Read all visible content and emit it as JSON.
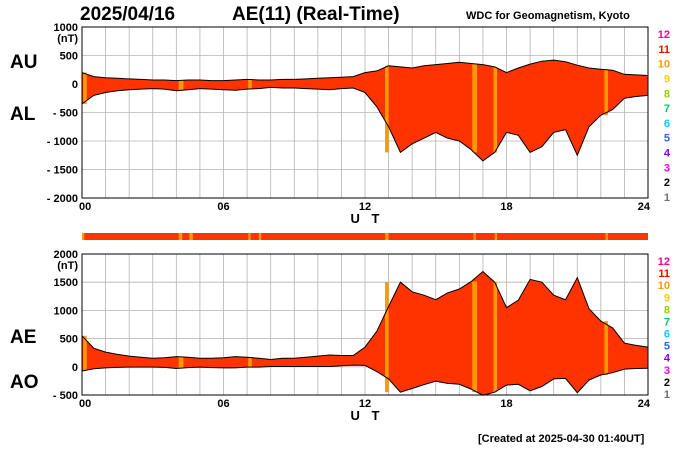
{
  "header": {
    "date": "2025/04/16",
    "title": "AE(11) (Real-Time)",
    "credit": "WDC for Geomagnetism, Kyoto",
    "created": "[Created at 2025-04-30 01:40UT]"
  },
  "colors": {
    "fill": "#ff3300",
    "highlight": "#ff9900",
    "bar_fill": "#ff3300",
    "station_scale": [
      "#b0b0b0",
      "#707070",
      "#000000",
      "#ff00ff",
      "#8800ff",
      "#3366ff",
      "#00ccff",
      "#00cc66",
      "#99cc00",
      "#ffcc00",
      "#ff9900",
      "#ff0000",
      "#ff0099"
    ]
  },
  "station_scale_labels": [
    "1",
    "2",
    "3",
    "4",
    "5",
    "6",
    "7",
    "8",
    "9",
    "10",
    "11",
    "12"
  ],
  "chart_data": [
    {
      "type": "area",
      "panel": "top",
      "left_labels": [
        "AU",
        "AL"
      ],
      "ylabel": "(nT)",
      "ylim": [
        -2000,
        1000
      ],
      "yticks": [
        1000,
        500,
        0,
        -500,
        -1000,
        -1500,
        -2000
      ],
      "ytick_labels": [
        "1000",
        "500",
        "0",
        "- 500",
        "- 1000",
        "- 1500",
        "- 2000"
      ],
      "xlim": [
        0,
        24
      ],
      "xticks": [
        0,
        6,
        12,
        18,
        24
      ],
      "xtick_labels": [
        "00",
        "06",
        "12",
        "18",
        "24"
      ],
      "xlabel": "U T",
      "x": [
        0,
        0.5,
        1,
        1.5,
        2,
        2.5,
        3,
        3.5,
        4,
        4.5,
        5,
        5.5,
        6,
        6.5,
        7,
        7.5,
        8,
        8.5,
        9,
        9.5,
        10,
        10.5,
        11,
        11.5,
        12,
        12.5,
        13,
        13.5,
        14,
        14.5,
        15,
        15.5,
        16,
        16.5,
        17,
        17.5,
        18,
        18.5,
        19,
        19.5,
        20,
        20.5,
        21,
        21.5,
        22,
        22.5,
        23,
        23.5,
        24
      ],
      "series": [
        {
          "values": [
            200,
            130,
            110,
            100,
            90,
            80,
            70,
            70,
            60,
            70,
            70,
            60,
            60,
            70,
            80,
            70,
            70,
            80,
            80,
            90,
            100,
            110,
            120,
            130,
            200,
            230,
            320,
            300,
            280,
            320,
            340,
            360,
            380,
            360,
            340,
            300,
            200,
            280,
            350,
            400,
            420,
            390,
            330,
            280,
            260,
            240,
            170,
            160,
            150
          ]
        },
        {
          "values": [
            -350,
            -200,
            -150,
            -120,
            -100,
            -90,
            -80,
            -90,
            -120,
            -100,
            -80,
            -90,
            -100,
            -110,
            -90,
            -80,
            -60,
            -70,
            -70,
            -80,
            -90,
            -100,
            -80,
            -70,
            -150,
            -400,
            -750,
            -1200,
            -1050,
            -950,
            -850,
            -950,
            -1000,
            -1150,
            -1350,
            -1200,
            -850,
            -900,
            -1200,
            -1100,
            -850,
            -800,
            -1250,
            -750,
            -550,
            -450,
            -250,
            -220,
            -200
          ]
        }
      ]
    },
    {
      "type": "area",
      "panel": "bottom",
      "left_labels": [
        "AE",
        "AO"
      ],
      "ylabel": "(nT)",
      "ylim": [
        -500,
        2000
      ],
      "yticks": [
        2000,
        1500,
        1000,
        500,
        0,
        -500
      ],
      "ytick_labels": [
        "2000",
        "1500",
        "1000",
        "500",
        "0",
        "- 500"
      ],
      "xlim": [
        0,
        24
      ],
      "xticks": [
        0,
        6,
        12,
        18,
        24
      ],
      "xtick_labels": [
        "00",
        "06",
        "12",
        "18",
        "24"
      ],
      "xlabel": "U T",
      "x": [
        0,
        0.5,
        1,
        1.5,
        2,
        2.5,
        3,
        3.5,
        4,
        4.5,
        5,
        5.5,
        6,
        6.5,
        7,
        7.5,
        8,
        8.5,
        9,
        9.5,
        10,
        10.5,
        11,
        11.5,
        12,
        12.5,
        13,
        13.5,
        14,
        14.5,
        15,
        15.5,
        16,
        16.5,
        17,
        17.5,
        18,
        18.5,
        19,
        19.5,
        20,
        20.5,
        21,
        21.5,
        22,
        22.5,
        23,
        23.5,
        24
      ],
      "series": [
        {
          "values": [
            550,
            330,
            260,
            220,
            190,
            170,
            150,
            160,
            180,
            170,
            150,
            150,
            160,
            180,
            170,
            150,
            130,
            150,
            150,
            170,
            190,
            210,
            200,
            200,
            350,
            630,
            1070,
            1500,
            1330,
            1270,
            1190,
            1310,
            1380,
            1510,
            1690,
            1500,
            1050,
            1180,
            1550,
            1500,
            1270,
            1190,
            1580,
            1030,
            810,
            690,
            420,
            380,
            350
          ]
        },
        {
          "values": [
            -75,
            -35,
            -20,
            -10,
            -5,
            -5,
            -5,
            -10,
            -30,
            -15,
            -5,
            -15,
            -20,
            -20,
            -5,
            -5,
            5,
            5,
            5,
            5,
            5,
            5,
            20,
            30,
            25,
            -85,
            -215,
            -450,
            -385,
            -315,
            -255,
            -295,
            -310,
            -395,
            -505,
            -450,
            -325,
            -310,
            -425,
            -350,
            -215,
            -205,
            -460,
            -235,
            -145,
            -105,
            -40,
            -30,
            -25
          ]
        }
      ]
    }
  ],
  "station_bar": {
    "highlight_segments": [
      [
        0.0,
        0.1
      ],
      [
        4.1,
        4.25
      ],
      [
        4.55,
        4.7
      ],
      [
        7.05,
        7.15
      ],
      [
        7.5,
        7.6
      ],
      [
        12.85,
        13.0
      ],
      [
        16.6,
        16.7
      ],
      [
        17.5,
        17.6
      ],
      [
        22.2,
        22.3
      ]
    ]
  },
  "top_highlight_spans": [
    [
      0.05,
      0.2
    ],
    [
      4.1,
      4.3
    ],
    [
      7.05,
      7.2
    ],
    [
      12.85,
      13.0
    ],
    [
      16.55,
      16.75
    ],
    [
      17.45,
      17.6
    ],
    [
      22.15,
      22.3
    ]
  ],
  "bottom_highlight_spans": [
    [
      0.05,
      0.2
    ],
    [
      4.1,
      4.3
    ],
    [
      7.05,
      7.2
    ],
    [
      12.85,
      13.0
    ],
    [
      16.55,
      16.75
    ],
    [
      17.45,
      17.6
    ],
    [
      22.15,
      22.3
    ]
  ]
}
